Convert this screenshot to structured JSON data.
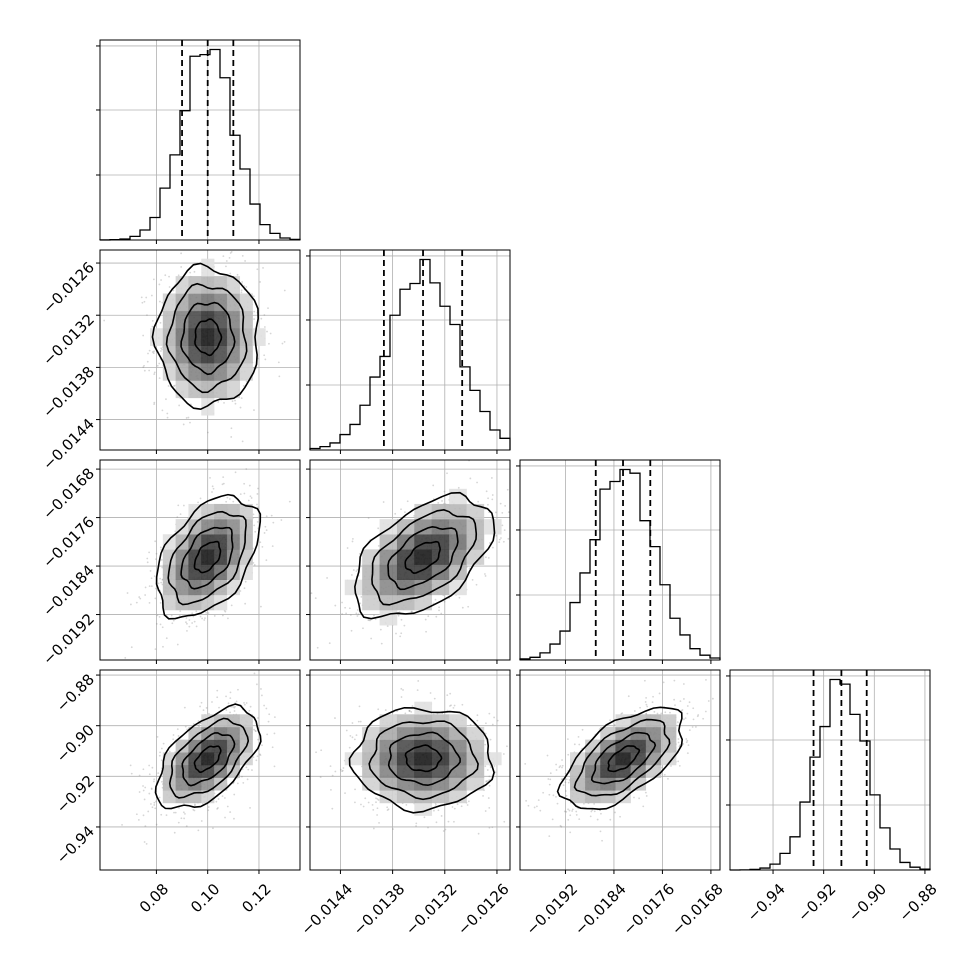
{
  "chart_data": {
    "type": "corner",
    "grid": true,
    "parameters": [
      {
        "index": 0,
        "center": 0.1,
        "sigma": 0.01,
        "range": [
          0.058,
          0.136
        ],
        "ticks": [
          0.08,
          0.1,
          0.12
        ],
        "tick_labels": [
          "0.08",
          "0.10",
          "0.12"
        ],
        "quantiles": [
          0.09,
          0.1,
          0.11
        ]
      },
      {
        "index": 1,
        "center": -0.01345,
        "sigma": 0.0004,
        "range": [
          -0.01475,
          -0.01245
        ],
        "ticks": [
          -0.0144,
          -0.0138,
          -0.0132,
          -0.0126
        ],
        "tick_labels": [
          "−0.0144",
          "−0.0138",
          "−0.0132",
          "−0.0126"
        ],
        "quantiles": [
          -0.0139,
          -0.01345,
          -0.013
        ]
      },
      {
        "index": 2,
        "center": -0.01825,
        "sigma": 0.0005,
        "range": [
          -0.01995,
          -0.01665
        ],
        "ticks": [
          -0.0192,
          -0.0184,
          -0.0176,
          -0.0168
        ],
        "tick_labels": [
          "−0.0192",
          "−0.0184",
          "−0.0176",
          "−0.0168"
        ],
        "quantiles": [
          -0.0187,
          -0.01825,
          -0.0178
        ]
      },
      {
        "index": 3,
        "center": -0.913,
        "sigma": 0.01,
        "range": [
          -0.957,
          -0.878
        ],
        "ticks": [
          -0.94,
          -0.92,
          -0.9,
          -0.88
        ],
        "tick_labels": [
          "−0.94",
          "−0.92",
          "−0.90",
          "−0.88"
        ],
        "quantiles": [
          -0.924,
          -0.913,
          -0.903
        ]
      }
    ],
    "pair_correlations": {
      "1,0": 0.0,
      "2,0": 0.45,
      "2,1": 0.5,
      "3,0": 0.55,
      "3,1": 0.0,
      "3,2": 0.6
    },
    "hist_bins": 20,
    "contour_levels": [
      "0.5σ",
      "1σ",
      "1.5σ",
      "2σ"
    ]
  }
}
